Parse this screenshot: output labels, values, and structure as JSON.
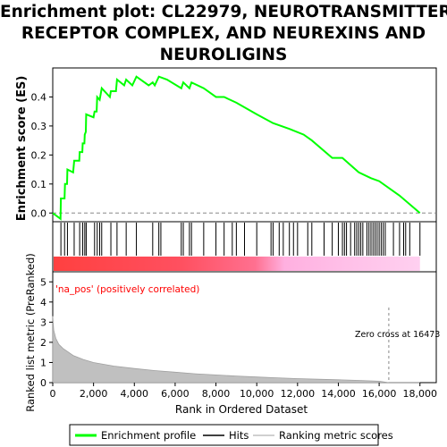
{
  "title_lines": [
    "Enrichment plot: CL22979, NEUROTRANSMITTER",
    "RECEPTOR COMPLEX, AND NEUREXINS AND",
    "NEUROLIGINS"
  ],
  "legend": {
    "enrichment": "Enrichment profile",
    "hits": "Hits",
    "ranking": "Ranking metric scores"
  },
  "colors": {
    "enrichment_line": "#00ff00",
    "hits": "#000000",
    "ranking_fill": "#c0c0c0",
    "positive_label": "#ff0000",
    "zero_cross_line": "#888888"
  },
  "chart_data": [
    {
      "type": "line",
      "ylabel": "Enrichment score (ES)",
      "xlim": [
        0,
        18800
      ],
      "ylim": [
        -0.03,
        0.5
      ],
      "yticks": [
        "0.0",
        "0.1",
        "0.2",
        "0.3",
        "0.4"
      ],
      "grid": false,
      "series": [
        {
          "name": "Enrichment profile",
          "points": [
            [
              0,
              0
            ],
            [
              380,
              -0.02
            ],
            [
              400,
              0.05
            ],
            [
              580,
              0.05
            ],
            [
              600,
              0.1
            ],
            [
              700,
              0.1
            ],
            [
              720,
              0.15
            ],
            [
              1000,
              0.14
            ],
            [
              1050,
              0.18
            ],
            [
              1300,
              0.18
            ],
            [
              1320,
              0.21
            ],
            [
              1450,
              0.21
            ],
            [
              1470,
              0.24
            ],
            [
              1550,
              0.24
            ],
            [
              1570,
              0.27
            ],
            [
              1620,
              0.28
            ],
            [
              1640,
              0.34
            ],
            [
              2000,
              0.33
            ],
            [
              2050,
              0.35
            ],
            [
              2150,
              0.35
            ],
            [
              2180,
              0.4
            ],
            [
              2300,
              0.39
            ],
            [
              2400,
              0.43
            ],
            [
              2800,
              0.4
            ],
            [
              2850,
              0.42
            ],
            [
              3100,
              0.42
            ],
            [
              3150,
              0.46
            ],
            [
              3500,
              0.44
            ],
            [
              3600,
              0.46
            ],
            [
              3900,
              0.44
            ],
            [
              4100,
              0.47
            ],
            [
              4700,
              0.44
            ],
            [
              4900,
              0.45
            ],
            [
              5000,
              0.44
            ],
            [
              5200,
              0.47
            ],
            [
              5600,
              0.46
            ],
            [
              6300,
              0.43
            ],
            [
              6400,
              0.45
            ],
            [
              6700,
              0.43
            ],
            [
              6800,
              0.45
            ],
            [
              7400,
              0.43
            ],
            [
              8000,
              0.4
            ],
            [
              8400,
              0.4
            ],
            [
              9000,
              0.38
            ],
            [
              10000,
              0.34
            ],
            [
              10800,
              0.31
            ],
            [
              11600,
              0.29
            ],
            [
              12300,
              0.27
            ],
            [
              12700,
              0.25
            ],
            [
              13700,
              0.19
            ],
            [
              14200,
              0.19
            ],
            [
              15000,
              0.14
            ],
            [
              15600,
              0.12
            ],
            [
              16000,
              0.11
            ],
            [
              17000,
              0.06
            ],
            [
              18000,
              0.0
            ]
          ]
        }
      ],
      "hit_positions": [
        400,
        580,
        720,
        1050,
        1320,
        1470,
        1570,
        1640,
        2050,
        2180,
        2300,
        2400,
        2850,
        3150,
        3600,
        4100,
        4900,
        5200,
        5300,
        6300,
        6400,
        6700,
        6800,
        7400,
        8000,
        8400,
        8800,
        9000,
        9400,
        10000,
        10700,
        10800,
        11100,
        11300,
        11600,
        11800,
        12000,
        12500,
        12700,
        13300,
        13700,
        14000,
        14200,
        14300,
        14400,
        14600,
        14800,
        14900,
        15000,
        15100,
        15200,
        15400,
        15500,
        15600,
        15700,
        15800,
        15900,
        16000,
        16100,
        16200,
        16300,
        16700,
        17000,
        17200,
        17300,
        17500,
        18000
      ]
    },
    {
      "type": "area",
      "xlabel": "Rank in Ordered Dataset",
      "ylabel": "Ranked list metric (PreRanked)",
      "xlim": [
        0,
        18800
      ],
      "ylim": [
        0,
        5.5
      ],
      "xticks": [
        "0",
        "2,000",
        "4,000",
        "6,000",
        "8,000",
        "10,000",
        "12,000",
        "14,000",
        "16,000",
        "18,000"
      ],
      "yticks": [
        "0",
        "1",
        "2",
        "3",
        "4",
        "5"
      ],
      "series": [
        {
          "name": "Ranking metric scores",
          "points": [
            [
              0,
              3.3
            ],
            [
              50,
              2.6
            ],
            [
              150,
              2.2
            ],
            [
              300,
              1.9
            ],
            [
              500,
              1.7
            ],
            [
              1000,
              1.35
            ],
            [
              1500,
              1.15
            ],
            [
              2000,
              1.0
            ],
            [
              3000,
              0.82
            ],
            [
              4000,
              0.7
            ],
            [
              5000,
              0.6
            ],
            [
              6000,
              0.52
            ],
            [
              7000,
              0.44
            ],
            [
              8000,
              0.38
            ],
            [
              9000,
              0.33
            ],
            [
              10000,
              0.28
            ],
            [
              11000,
              0.24
            ],
            [
              12000,
              0.2
            ],
            [
              13000,
              0.17
            ],
            [
              14000,
              0.14
            ],
            [
              15000,
              0.11
            ],
            [
              16000,
              0.07
            ],
            [
              16473,
              0.0
            ],
            [
              18000,
              0.0
            ]
          ]
        }
      ],
      "positive_label": "'na_pos' (positively correlated)",
      "zero_cross_label": "Zero cross at 16473",
      "zero_cross": 16473
    }
  ]
}
